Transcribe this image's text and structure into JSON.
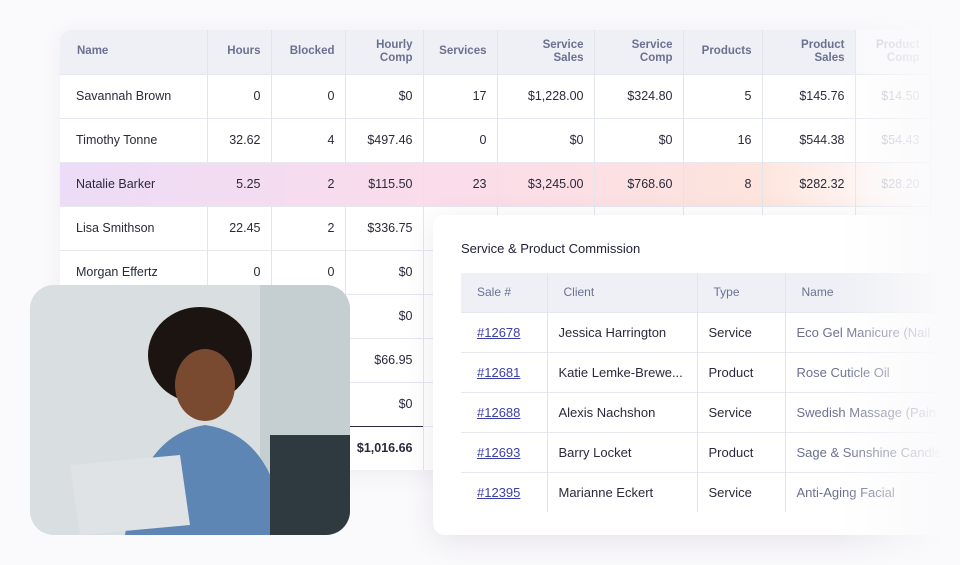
{
  "payroll": {
    "columns": [
      "Name",
      "Hours",
      "Blocked",
      "Hourly Comp",
      "Services",
      "Service Sales",
      "Service Comp",
      "Products",
      "Product Sales",
      "Product Comp"
    ],
    "rows": [
      [
        "Savannah Brown",
        "0",
        "0",
        "$0",
        "17",
        "$1,228.00",
        "$324.80",
        "5",
        "$145.76",
        "$14.50"
      ],
      [
        "Timothy Tonne",
        "32.62",
        "4",
        "$497.46",
        "0",
        "$0",
        "$0",
        "16",
        "$544.38",
        "$54.43"
      ],
      [
        "Natalie Barker",
        "5.25",
        "2",
        "$115.50",
        "23",
        "$3,245.00",
        "$768.60",
        "8",
        "$282.32",
        "$28.20"
      ],
      [
        "Lisa Smithson",
        "22.45",
        "2",
        "$336.75",
        "",
        "",
        "",
        "",
        "",
        ""
      ],
      [
        "Morgan Effertz",
        "0",
        "0",
        "$0",
        "",
        "",
        "",
        "",
        "",
        ""
      ],
      [
        "",
        "",
        "",
        "$0",
        "",
        "",
        "",
        "",
        "",
        ""
      ],
      [
        "",
        "",
        "",
        "$66.95",
        "",
        "",
        "",
        "",
        "",
        ""
      ],
      [
        "",
        "",
        "",
        "$0",
        "",
        "",
        "",
        "",
        "",
        ""
      ]
    ],
    "total_hourly_comp": "$1,016.66",
    "highlight_row": 2
  },
  "commission": {
    "title": "Service & Product Commission",
    "columns": [
      "Sale #",
      "Client",
      "Type",
      "Name"
    ],
    "rows": [
      [
        "#12678",
        "Jessica Harrington",
        "Service",
        "Eco Gel Manicure (Nail"
      ],
      [
        "#12681",
        "Katie Lemke-Brewe...",
        "Product",
        "Rose Cuticle Oil"
      ],
      [
        "#12688",
        "Alexis Nachshon",
        "Service",
        "Swedish Massage (Pain"
      ],
      [
        "#12693",
        "Barry Locket",
        "Product",
        "Sage & Sunshine Candle"
      ],
      [
        "#12395",
        "Marianne Eckert",
        "Service",
        "Anti-Aging Facial"
      ]
    ]
  }
}
